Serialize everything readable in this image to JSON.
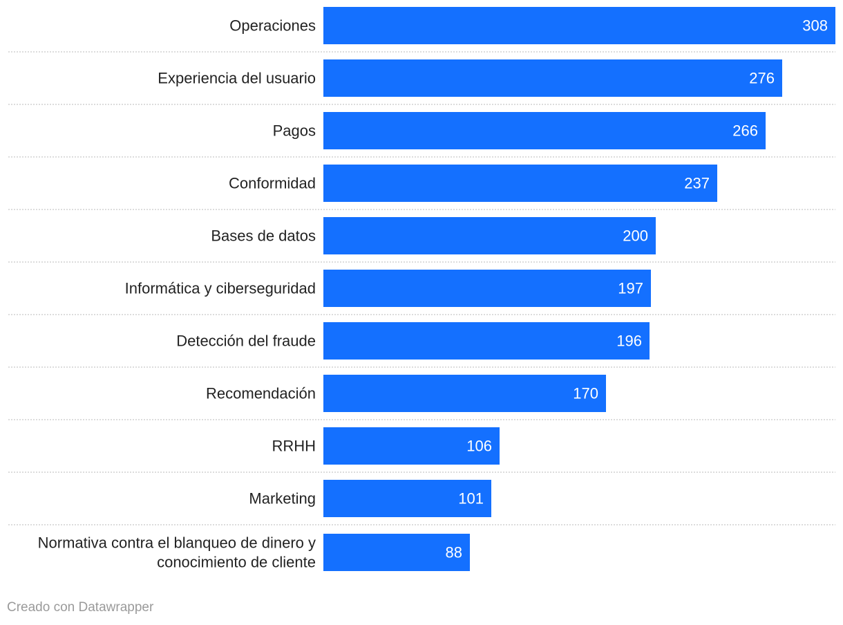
{
  "chart_data": {
    "type": "bar",
    "orientation": "horizontal",
    "categories": [
      "Operaciones",
      "Experiencia del usuario",
      "Pagos",
      "Conformidad",
      "Bases de datos",
      "Informática y ciberseguridad",
      "Detección del fraude",
      "Recomendación",
      "RRHH",
      "Marketing",
      "Normativa contra el blanqueo de dinero y conocimiento de cliente"
    ],
    "category_lines": [
      [
        "Operaciones"
      ],
      [
        "Experiencia del usuario"
      ],
      [
        "Pagos"
      ],
      [
        "Conformidad"
      ],
      [
        "Bases de datos"
      ],
      [
        "Informática y ciberseguridad"
      ],
      [
        "Detección del fraude"
      ],
      [
        "Recomendación"
      ],
      [
        "RRHH"
      ],
      [
        "Marketing"
      ],
      [
        "Normativa contra el blanqueo de dinero y",
        "conocimiento de cliente"
      ]
    ],
    "values": [
      308,
      276,
      266,
      237,
      200,
      197,
      196,
      170,
      106,
      101,
      88
    ],
    "xlim": [
      0,
      308
    ],
    "bar_color": "#1470ff",
    "grid": false
  },
  "footer": {
    "credit": "Creado con Datawrapper"
  }
}
